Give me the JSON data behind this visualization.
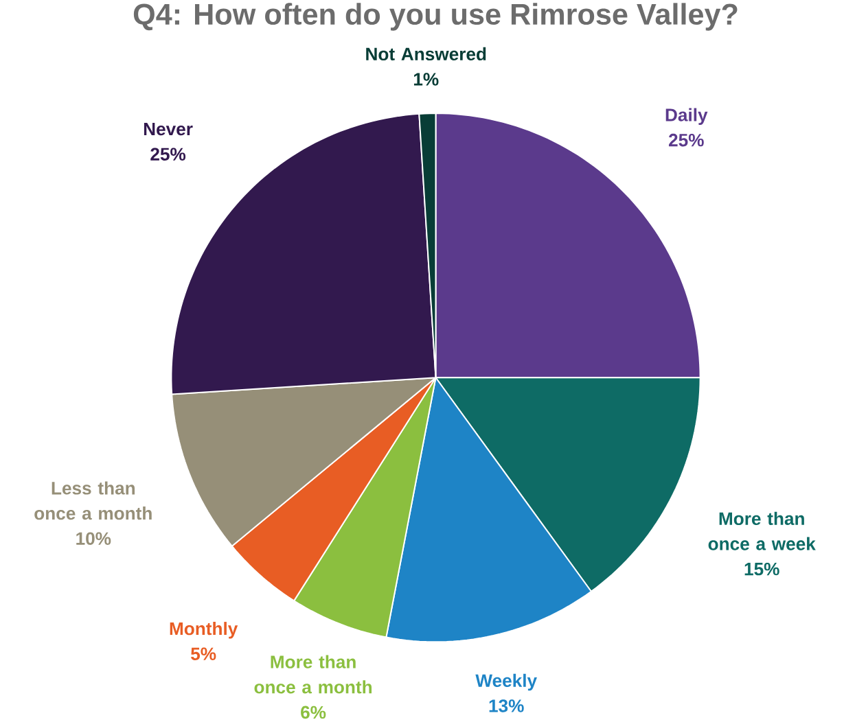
{
  "chart_data": {
    "type": "pie",
    "title": "Q4: How often do you use Rimrose Valley?",
    "categories": [
      "Daily",
      "More than once a week",
      "Weekly",
      "More than once a month",
      "Monthly",
      "Less than once a month",
      "Never",
      "Not Answered"
    ],
    "values": [
      25,
      15,
      13,
      6,
      5,
      10,
      25,
      1
    ],
    "colors": [
      "#5b3a8c",
      "#0e6b65",
      "#1e84c6",
      "#8bbf3f",
      "#e85d24",
      "#968f78",
      "#32194e",
      "#083d36"
    ],
    "value_labels": [
      "25%",
      "15%",
      "13%",
      "6%",
      "5%",
      "10%",
      "25%",
      "1%"
    ]
  }
}
